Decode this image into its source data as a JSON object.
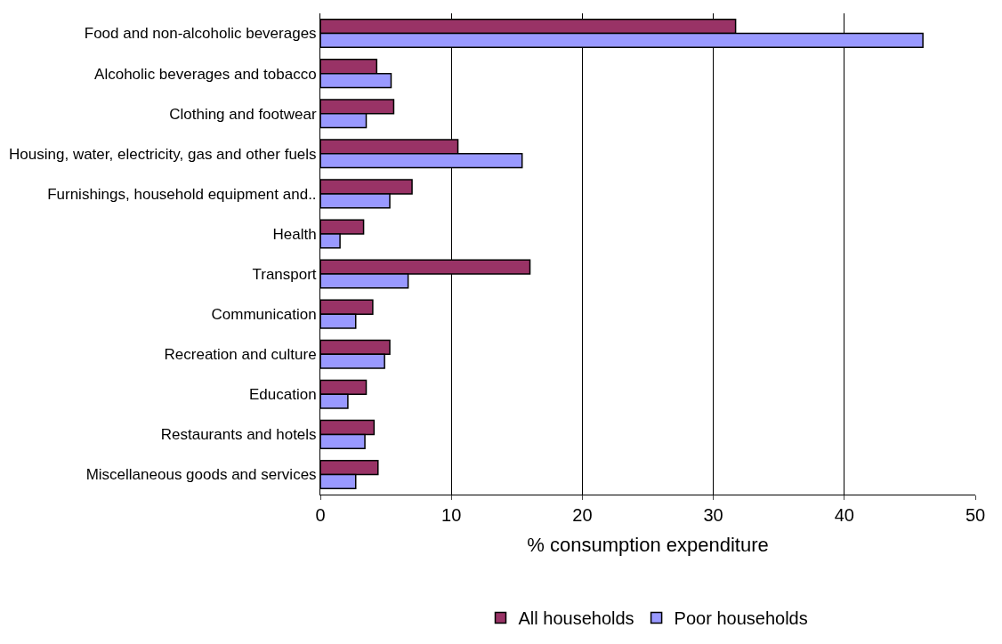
{
  "chart_data": {
    "type": "bar",
    "orientation": "horizontal",
    "xlabel": "% consumption expenditure",
    "categories": [
      "Food and non-alcoholic beverages",
      "Alcoholic beverages and tobacco",
      "Clothing and footwear",
      "Housing, water, electricity, gas and other fuels",
      "Furnishings, household equipment and..",
      "Health",
      "Transport",
      "Communication",
      "Recreation and culture",
      "Education",
      "Restaurants and hotels",
      "Miscellaneous goods and services"
    ],
    "series": [
      {
        "name": "All households",
        "color": "#993366",
        "values": [
          31.7,
          4.3,
          5.6,
          10.5,
          7.0,
          3.3,
          16.0,
          4.0,
          5.3,
          3.5,
          4.1,
          4.4
        ]
      },
      {
        "name": "Poor households",
        "color": "#9999ff",
        "values": [
          46.0,
          5.4,
          3.5,
          15.4,
          5.3,
          1.5,
          6.7,
          2.7,
          4.9,
          2.1,
          3.4,
          2.7
        ]
      }
    ],
    "xlim": [
      0,
      50
    ],
    "xticks": [
      0,
      10,
      20,
      30,
      40,
      50
    ],
    "grid": "x",
    "legend": "bottom"
  }
}
